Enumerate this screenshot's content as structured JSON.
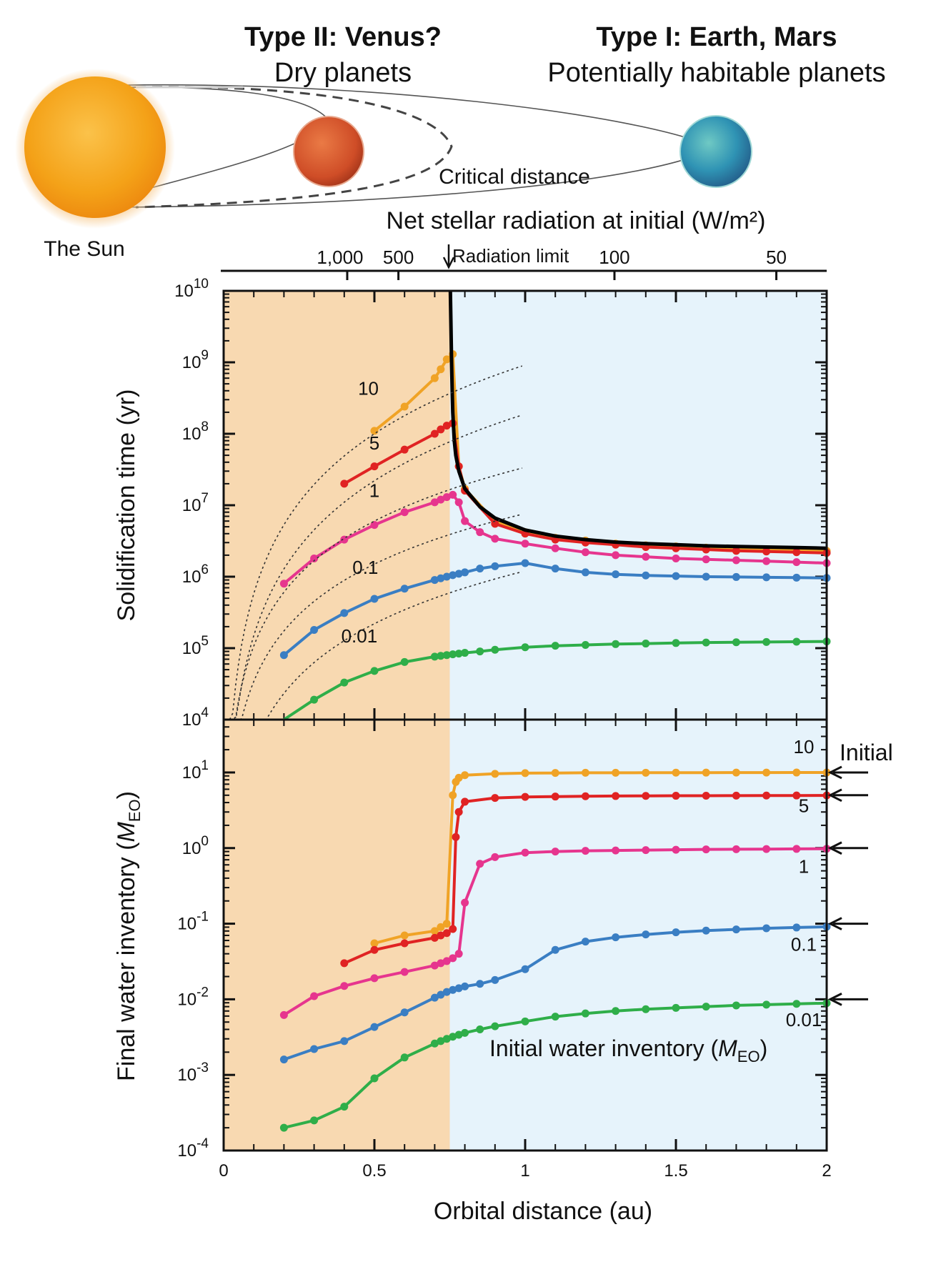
{
  "header": {
    "type2_title": "Type II: Venus?",
    "type2_sub": "Dry planets",
    "type1_title": "Type I: Earth, Mars",
    "type1_sub": "Potentially habitable planets",
    "sun_label": "The Sun",
    "critical_distance": "Critical distance"
  },
  "top_axis": {
    "title": "Net stellar radiation at initial (W/m²)",
    "radiation_limit": "Radiation limit",
    "tick_labels": [
      "1,000",
      "500",
      "100",
      "50"
    ],
    "tick_values": [
      1000,
      500,
      100,
      50
    ]
  },
  "arrow_label": "Initial",
  "colors": {
    "venus_zone": "#f8d9b1",
    "habitable_zone": "#e6f3fb",
    "w10": "#f0a326",
    "w5": "#e02323",
    "w1": "#e6358e",
    "w01": "#3a7ec3",
    "w001": "#2fae49",
    "limit": "#000000",
    "sun": "#f4a218",
    "venus": "#d5522a",
    "earth": "#39a8b8"
  },
  "chart_data": [
    {
      "type": "line",
      "title": "",
      "xlabel": "",
      "ylabel": "Solidification time (yr)",
      "xlim": [
        0,
        2
      ],
      "ylim": [
        10000,
        10000000000
      ],
      "yscale": "log",
      "y_tick_labels": [
        "10^4",
        "10^5",
        "10^6",
        "10^7",
        "10^8",
        "10^9",
        "10^10"
      ],
      "critical_distance_au": 0.75,
      "series": [
        {
          "name": "10",
          "label": "10",
          "x": [
            0.5,
            0.6,
            0.7,
            0.72,
            0.74,
            0.76,
            0.78,
            0.8,
            0.9,
            1.0,
            1.1,
            1.2,
            1.3,
            1.4,
            1.5,
            1.6,
            1.7,
            1.8,
            1.9,
            2.0
          ],
          "y": [
            110000000,
            240000000,
            600000000,
            800000000,
            1100000000,
            1300000000,
            35000000,
            17000000,
            6000000,
            4200000,
            3500000,
            3200000,
            2900000,
            2750000,
            2650000,
            2550000,
            2450000,
            2400000,
            2350000,
            2300000
          ]
        },
        {
          "name": "5",
          "label": "5",
          "x": [
            0.4,
            0.5,
            0.6,
            0.7,
            0.72,
            0.74,
            0.76,
            0.78,
            0.8,
            0.9,
            1.0,
            1.1,
            1.2,
            1.3,
            1.4,
            1.5,
            1.6,
            1.7,
            1.8,
            1.9,
            2.0
          ],
          "y": [
            20000000,
            35000000,
            60000000,
            100000000,
            115000000,
            130000000,
            140000000,
            35000000,
            16000000,
            5500000,
            4000000,
            3300000,
            3000000,
            2800000,
            2600000,
            2500000,
            2400000,
            2300000,
            2250000,
            2200000,
            2150000
          ]
        },
        {
          "name": "1",
          "label": "1",
          "x": [
            0.2,
            0.3,
            0.4,
            0.5,
            0.6,
            0.7,
            0.72,
            0.74,
            0.76,
            0.78,
            0.8,
            0.85,
            0.9,
            1.0,
            1.1,
            1.2,
            1.3,
            1.4,
            1.5,
            1.6,
            1.7,
            1.8,
            1.9,
            2.0
          ],
          "y": [
            800000,
            1800000,
            3300000,
            5300000,
            8000000,
            11000000,
            12000000,
            13000000,
            14000000,
            11000000,
            6000000,
            4200000,
            3400000,
            2900000,
            2500000,
            2200000,
            2000000,
            1900000,
            1800000,
            1750000,
            1700000,
            1650000,
            1600000,
            1550000
          ]
        },
        {
          "name": "0.1",
          "label": "0.1",
          "x": [
            0.2,
            0.3,
            0.4,
            0.5,
            0.6,
            0.7,
            0.72,
            0.74,
            0.76,
            0.78,
            0.8,
            0.85,
            0.9,
            1.0,
            1.1,
            1.2,
            1.3,
            1.4,
            1.5,
            1.6,
            1.7,
            1.8,
            1.9,
            2.0
          ],
          "y": [
            80000,
            180000,
            310000,
            490000,
            680000,
            900000,
            950000,
            1000000,
            1050000,
            1100000,
            1150000,
            1300000,
            1400000,
            1550000,
            1300000,
            1150000,
            1080000,
            1040000,
            1020000,
            1000000,
            990000,
            980000,
            970000,
            960000
          ]
        },
        {
          "name": "0.01",
          "label": "0.01",
          "x": [
            0.2,
            0.3,
            0.4,
            0.5,
            0.6,
            0.7,
            0.72,
            0.74,
            0.76,
            0.78,
            0.8,
            0.85,
            0.9,
            1.0,
            1.1,
            1.2,
            1.3,
            1.4,
            1.5,
            1.6,
            1.7,
            1.8,
            1.9,
            2.0
          ],
          "y": [
            9000,
            19000,
            33000,
            48000,
            64000,
            76000,
            78000,
            80000,
            82000,
            84000,
            86000,
            90000,
            95000,
            103000,
            108000,
            111000,
            114000,
            116000,
            118000,
            120000,
            121000,
            122000,
            123000,
            124000
          ]
        },
        {
          "name": "radiation limit",
          "label": "",
          "x": [
            0.752,
            0.754,
            0.756,
            0.758,
            0.76,
            0.765,
            0.77,
            0.78,
            0.8,
            0.85,
            0.9,
            1.0,
            1.1,
            1.2,
            1.3,
            1.4,
            1.5,
            1.6,
            1.7,
            1.8,
            1.9,
            2.0
          ],
          "y": [
            10000000000,
            3000000000,
            1000000000,
            400000000,
            200000000,
            80000000,
            50000000,
            30000000,
            17000000,
            9500000,
            6600000,
            4500000,
            3700000,
            3300000,
            3050000,
            2900000,
            2800000,
            2700000,
            2650000,
            2600000,
            2550000,
            2500000
          ]
        }
      ]
    },
    {
      "type": "line",
      "title": "",
      "xlabel": "Orbital distance (au)",
      "ylabel": "Final water inventory (MEO)",
      "ylabel_main": "Final water inventory (",
      "ylabel_sym": "M",
      "ylabel_sub": "EO",
      "ylabel_end": ")",
      "xlim": [
        0,
        2
      ],
      "ylim": [
        0.0001,
        50
      ],
      "yscale": "log",
      "x_tick_labels": [
        "0",
        "0.5",
        "1",
        "1.5",
        "2"
      ],
      "x_tick_values": [
        0,
        0.5,
        1,
        1.5,
        2
      ],
      "y_tick_labels": [
        "10^-4",
        "10^-3",
        "10^-2",
        "10^-1",
        "10^0",
        "10^1"
      ],
      "legend_title": "Initial water inventory (MEO)",
      "legend_main": "Initial water inventory (",
      "legend_sym": "M",
      "legend_sub": "EO",
      "legend_end": ")",
      "initial_values": [
        10,
        5,
        1,
        0.1,
        0.01
      ],
      "series": [
        {
          "name": "10",
          "label": "10",
          "x": [
            0.5,
            0.6,
            0.7,
            0.72,
            0.74,
            0.76,
            0.77,
            0.78,
            0.8,
            0.9,
            1.0,
            1.1,
            1.2,
            1.3,
            1.4,
            1.5,
            1.6,
            1.7,
            1.8,
            1.9,
            2.0
          ],
          "y": [
            0.055,
            0.07,
            0.08,
            0.09,
            0.1,
            5,
            7.5,
            8.5,
            9.2,
            9.6,
            9.8,
            9.85,
            9.9,
            9.9,
            9.92,
            9.93,
            9.95,
            9.96,
            9.97,
            9.98,
            9.99
          ]
        },
        {
          "name": "5",
          "label": "5",
          "x": [
            0.4,
            0.5,
            0.6,
            0.7,
            0.72,
            0.74,
            0.76,
            0.77,
            0.78,
            0.8,
            0.9,
            1.0,
            1.1,
            1.2,
            1.3,
            1.4,
            1.5,
            1.6,
            1.7,
            1.8,
            1.9,
            2.0
          ],
          "y": [
            0.03,
            0.045,
            0.055,
            0.065,
            0.07,
            0.075,
            0.085,
            1.4,
            3,
            4.1,
            4.6,
            4.75,
            4.8,
            4.85,
            4.88,
            4.9,
            4.92,
            4.93,
            4.94,
            4.95,
            4.96,
            4.97
          ]
        },
        {
          "name": "1",
          "label": "1",
          "x": [
            0.2,
            0.3,
            0.4,
            0.5,
            0.6,
            0.7,
            0.72,
            0.74,
            0.76,
            0.78,
            0.8,
            0.85,
            0.9,
            1.0,
            1.1,
            1.2,
            1.3,
            1.4,
            1.5,
            1.6,
            1.7,
            1.8,
            1.9,
            2.0
          ],
          "y": [
            0.0062,
            0.011,
            0.015,
            0.019,
            0.023,
            0.028,
            0.03,
            0.032,
            0.035,
            0.04,
            0.19,
            0.62,
            0.76,
            0.87,
            0.9,
            0.92,
            0.93,
            0.94,
            0.95,
            0.96,
            0.965,
            0.97,
            0.975,
            0.98
          ]
        },
        {
          "name": "0.1",
          "label": "0.1",
          "x": [
            0.2,
            0.3,
            0.4,
            0.5,
            0.6,
            0.7,
            0.72,
            0.74,
            0.76,
            0.78,
            0.8,
            0.85,
            0.9,
            1.0,
            1.1,
            1.2,
            1.3,
            1.4,
            1.5,
            1.6,
            1.7,
            1.8,
            1.9,
            2.0
          ],
          "y": [
            0.0016,
            0.0022,
            0.0028,
            0.0043,
            0.0067,
            0.0105,
            0.0115,
            0.0125,
            0.0133,
            0.014,
            0.0148,
            0.016,
            0.018,
            0.025,
            0.045,
            0.058,
            0.066,
            0.072,
            0.077,
            0.081,
            0.084,
            0.087,
            0.089,
            0.091
          ]
        },
        {
          "name": "0.01",
          "label": "0.01",
          "x": [
            0.2,
            0.3,
            0.4,
            0.5,
            0.6,
            0.7,
            0.72,
            0.74,
            0.76,
            0.78,
            0.8,
            0.85,
            0.9,
            1.0,
            1.1,
            1.2,
            1.3,
            1.4,
            1.5,
            1.6,
            1.7,
            1.8,
            1.9,
            2.0
          ],
          "y": [
            0.0002,
            0.00025,
            0.00038,
            0.0009,
            0.0017,
            0.0026,
            0.0028,
            0.003,
            0.0032,
            0.0034,
            0.0036,
            0.004,
            0.0044,
            0.0051,
            0.0059,
            0.0065,
            0.007,
            0.0074,
            0.0077,
            0.008,
            0.0083,
            0.0085,
            0.0087,
            0.0089
          ]
        }
      ]
    }
  ]
}
